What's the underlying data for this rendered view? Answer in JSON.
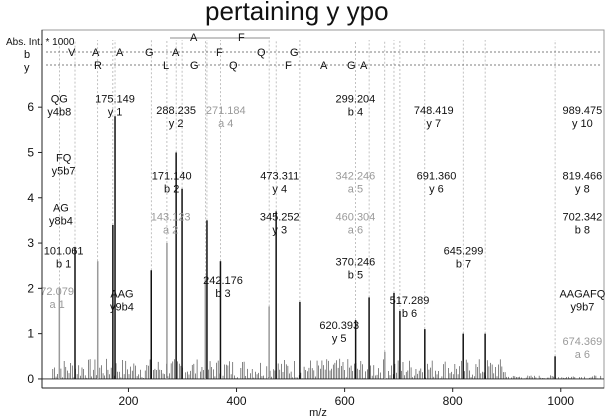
{
  "header_text": "pertaining y ypo",
  "chart_data": {
    "type": "bar",
    "ylabel": "Abs. Int. * 1000",
    "xlabel": "m/z",
    "xlim": [
      40,
      1080
    ],
    "ylim": [
      -0.2,
      6.6
    ],
    "xticks": [
      200,
      400,
      600,
      800,
      1000
    ],
    "yticks": [
      0,
      1,
      2,
      3,
      4,
      5,
      6
    ],
    "series_labels": {
      "top": "A F",
      "b": "b",
      "b_seq": "V A A G A F Q G",
      "y": "y",
      "y_seq": "R L G Q F A G A"
    },
    "peaks": [
      {
        "mz": 72.079,
        "intensity": 2.0,
        "color": "#9a9a9a"
      },
      {
        "mz": 101.061,
        "intensity": 2.9,
        "color": "#111"
      },
      {
        "mz": 143.123,
        "intensity": 2.6,
        "color": "#9a9a9a"
      },
      {
        "mz": 171.14,
        "intensity": 3.4,
        "color": "#111"
      },
      {
        "mz": 175.149,
        "intensity": 5.8,
        "color": "#111"
      },
      {
        "mz": 242.176,
        "intensity": 2.4,
        "color": "#111"
      },
      {
        "mz": 271.184,
        "intensity": 3.0,
        "color": "#9a9a9a"
      },
      {
        "mz": 288.235,
        "intensity": 5.0,
        "color": "#111"
      },
      {
        "mz": 299.204,
        "intensity": 4.2,
        "color": "#111"
      },
      {
        "mz": 342.246,
        "intensity": 2.2,
        "color": "#9a9a9a"
      },
      {
        "mz": 345.252,
        "intensity": 3.5,
        "color": "#111"
      },
      {
        "mz": 370.246,
        "intensity": 2.6,
        "color": "#111"
      },
      {
        "mz": 460.304,
        "intensity": 1.6,
        "color": "#9a9a9a"
      },
      {
        "mz": 473.311,
        "intensity": 3.7,
        "color": "#111"
      },
      {
        "mz": 517.289,
        "intensity": 1.7,
        "color": "#111"
      },
      {
        "mz": 620.393,
        "intensity": 1.3,
        "color": "#111"
      },
      {
        "mz": 645.299,
        "intensity": 1.8,
        "color": "#111"
      },
      {
        "mz": 674.369,
        "intensity": 0.6,
        "color": "#9a9a9a"
      },
      {
        "mz": 691.36,
        "intensity": 1.9,
        "color": "#111"
      },
      {
        "mz": 702.342,
        "intensity": 1.5,
        "color": "#111"
      },
      {
        "mz": 748.419,
        "intensity": 1.1,
        "color": "#111"
      },
      {
        "mz": 819.466,
        "intensity": 1.0,
        "color": "#111"
      },
      {
        "mz": 860.0,
        "intensity": 1.0,
        "color": "#111"
      },
      {
        "mz": 989.475,
        "intensity": 0.5,
        "color": "#111"
      }
    ],
    "annotations": [
      {
        "line1": "QG",
        "line2": "y4b8",
        "x": 72,
        "y": 6.1,
        "gray": false
      },
      {
        "line1": "175.149",
        "line2": "y 1",
        "x": 175.149,
        "y": 6.1,
        "gray": false
      },
      {
        "line1": "288.235",
        "line2": "y 2",
        "x": 288.235,
        "y": 5.85,
        "gray": false
      },
      {
        "line1": "271.184",
        "line2": "a 4",
        "x": 380,
        "y": 5.85,
        "gray": true
      },
      {
        "line1": "299.204",
        "line2": "b 4",
        "x": 620,
        "y": 6.1,
        "gray": false
      },
      {
        "line1": "748.419",
        "line2": "y 7",
        "x": 765,
        "y": 5.85,
        "gray": false
      },
      {
        "line1": "989.475",
        "line2": "y 10",
        "x": 1040,
        "y": 5.85,
        "gray": false
      },
      {
        "line1": "FQ",
        "line2": "y5b7",
        "x": 80,
        "y": 4.8,
        "gray": false
      },
      {
        "line1": "171.140",
        "line2": "b 2",
        "x": 280,
        "y": 4.4,
        "gray": false
      },
      {
        "line1": "473.311",
        "line2": "y 4",
        "x": 480,
        "y": 4.4,
        "gray": false
      },
      {
        "line1": "342.246",
        "line2": "a 5",
        "x": 620,
        "y": 4.4,
        "gray": true
      },
      {
        "line1": "691.360",
        "line2": "y 6",
        "x": 770,
        "y": 4.4,
        "gray": false
      },
      {
        "line1": "819.466",
        "line2": "y 8",
        "x": 1040,
        "y": 4.4,
        "gray": false
      },
      {
        "line1": "AG",
        "line2": "y8b4",
        "x": 75,
        "y": 3.7,
        "gray": false
      },
      {
        "line1": "143.123",
        "line2": "a 2",
        "x": 278,
        "y": 3.5,
        "gray": true
      },
      {
        "line1": "345.252",
        "line2": "y 3",
        "x": 480,
        "y": 3.5,
        "gray": false
      },
      {
        "line1": "460.304",
        "line2": "a 6",
        "x": 620,
        "y": 3.5,
        "gray": true
      },
      {
        "line1": "702.342",
        "line2": "b 8",
        "x": 1040,
        "y": 3.5,
        "gray": false
      },
      {
        "line1": "101.061",
        "line2": "b 1",
        "x": 80,
        "y": 2.75,
        "gray": false
      },
      {
        "line1": "370.246",
        "line2": "b 5",
        "x": 620,
        "y": 2.5,
        "gray": false
      },
      {
        "line1": "645.299",
        "line2": "b 7",
        "x": 820,
        "y": 2.75,
        "gray": false
      },
      {
        "line1": "242.176",
        "line2": "b 3",
        "x": 375,
        "y": 2.1,
        "gray": false
      },
      {
        "line1": "72.079",
        "line2": "a 1",
        "x": 68,
        "y": 1.85,
        "gray": true
      },
      {
        "line1": "AAG",
        "line2": "y9b4",
        "x": 188,
        "y": 1.8,
        "gray": false
      },
      {
        "line1": "517.289",
        "line2": "b 6",
        "x": 720,
        "y": 1.65,
        "gray": false
      },
      {
        "line1": "AAGAFQ",
        "line2": "y9b7",
        "x": 1040,
        "y": 1.8,
        "gray": false
      },
      {
        "line1": "620.393",
        "line2": "y 5",
        "x": 590,
        "y": 1.1,
        "gray": false
      },
      {
        "line1": "674.369",
        "line2": "a 6",
        "x": 1040,
        "y": 0.75,
        "gray": true
      }
    ]
  }
}
